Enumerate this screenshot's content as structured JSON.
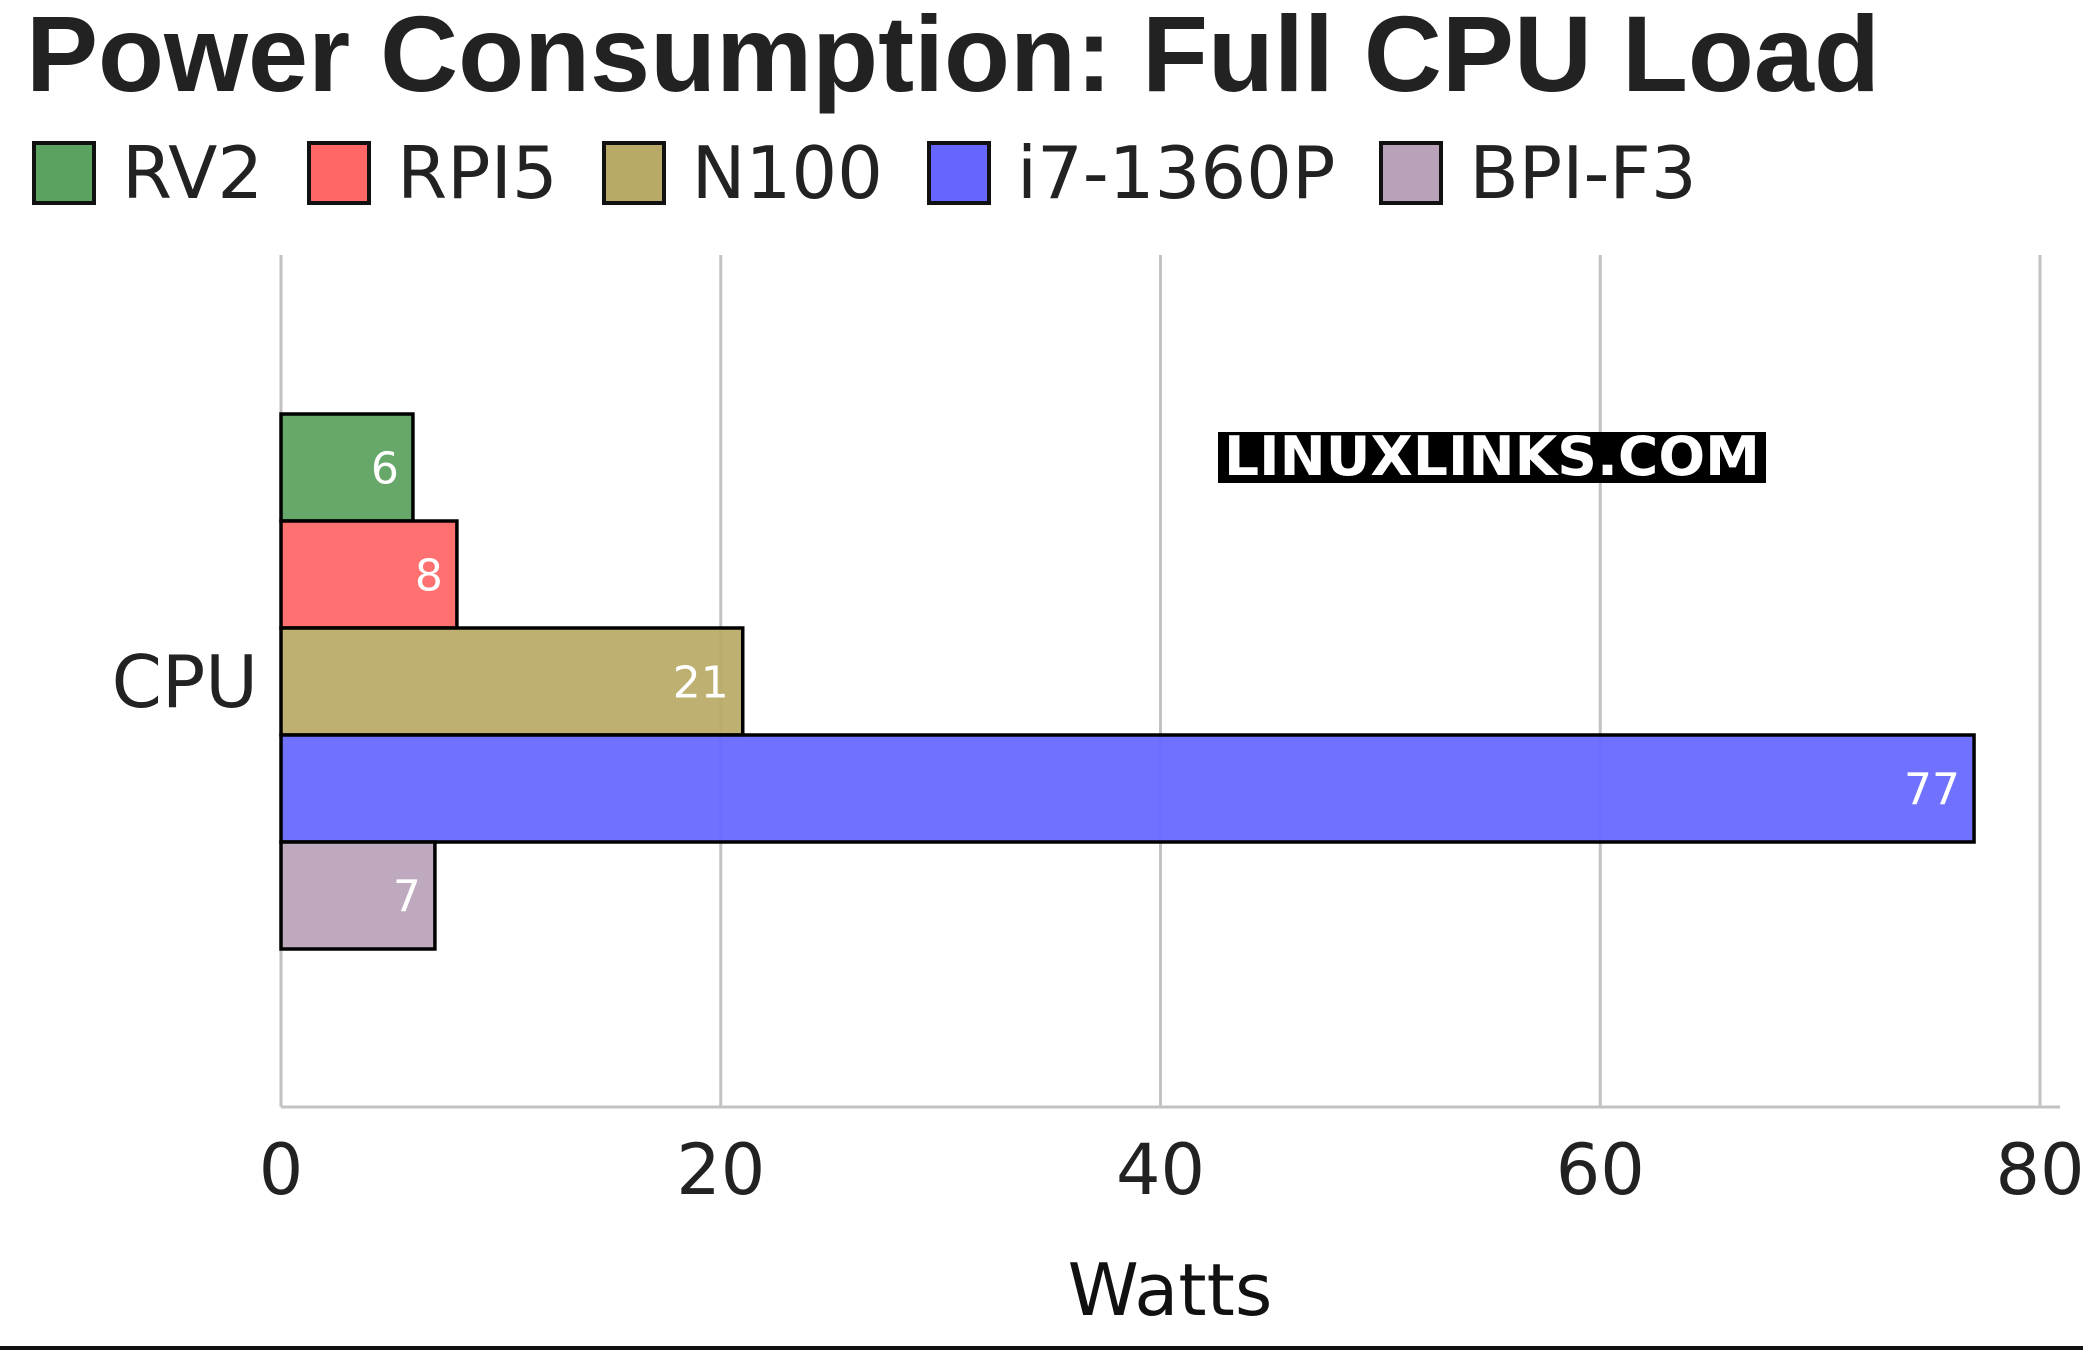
{
  "chart_data": {
    "type": "bar",
    "orientation": "horizontal",
    "title": "Power Consumption: Full CPU Load",
    "categories": [
      "CPU"
    ],
    "series": [
      {
        "name": "RV2",
        "values": [
          6
        ],
        "color": "#5ba15f"
      },
      {
        "name": "RPI5",
        "values": [
          8
        ],
        "color": "#ff6666"
      },
      {
        "name": "N100",
        "values": [
          21
        ],
        "color": "#b8aa66"
      },
      {
        "name": "i7-1360P",
        "values": [
          77
        ],
        "color": "#6666ff"
      },
      {
        "name": "BPI-F3",
        "values": [
          7
        ],
        "color": "#b9a2b9"
      }
    ],
    "xlabel": "Watts",
    "ylabel": "",
    "xlim": [
      0,
      80
    ],
    "xticks": [
      0,
      20,
      40,
      60,
      80
    ],
    "tick_labels": [
      "0",
      "20",
      "40",
      "60",
      "80"
    ],
    "data_labels": [
      "6",
      "8",
      "21",
      "77",
      "7"
    ],
    "grid": "vertical",
    "legend_position": "top-left",
    "watermark": "LINUXLINKS.COM"
  }
}
